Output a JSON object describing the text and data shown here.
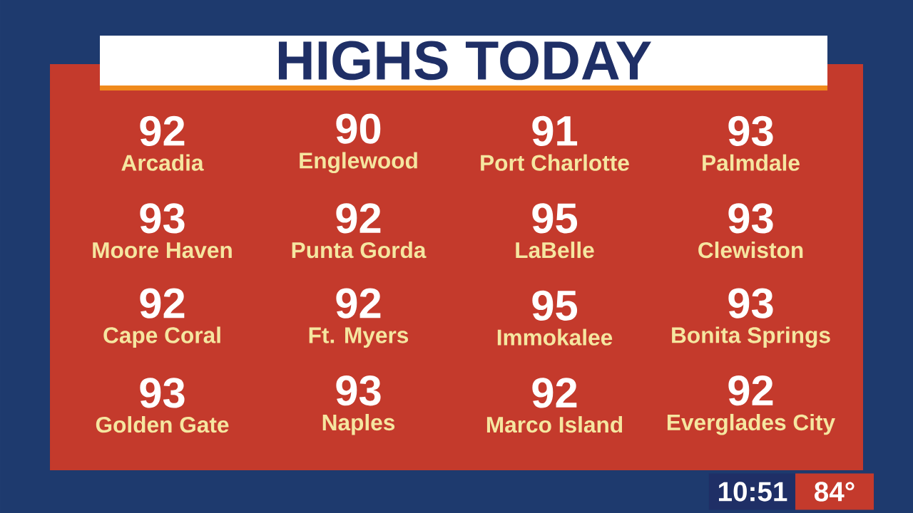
{
  "chart_data": {
    "type": "other",
    "title": "HIGHS TODAY",
    "categories": [
      "Arcadia",
      "Englewood",
      "Port Charlotte",
      "Palmdale",
      "Moore Haven",
      "Punta Gorda",
      "LaBelle",
      "Clewiston",
      "Cape Coral",
      "Ft. Myers",
      "Immokalee",
      "Bonita Springs",
      "Golden Gate",
      "Naples",
      "Marco Island",
      "Everglades City"
    ],
    "values": [
      92,
      90,
      91,
      93,
      93,
      92,
      95,
      93,
      92,
      92,
      95,
      93,
      93,
      93,
      92,
      92
    ],
    "data_labels": true,
    "annotations": [
      "10:51",
      "84°"
    ]
  }
}
